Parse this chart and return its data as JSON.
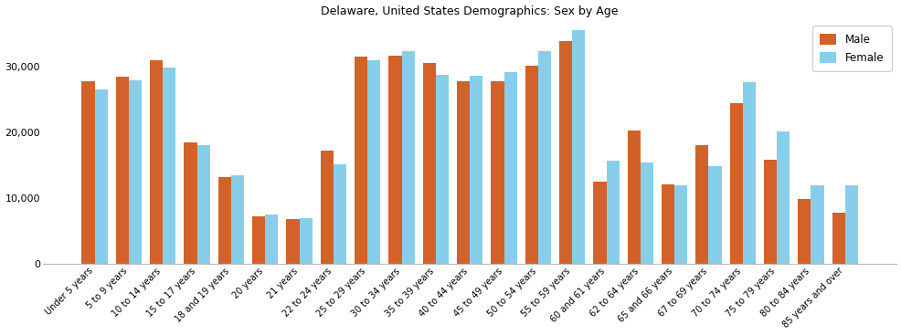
{
  "title": "Delaware, United States Demographics: Sex by Age",
  "categories": [
    "Under 5 years",
    "5 to 9 years",
    "10 to 14 years",
    "15 to 17 years",
    "18 and 19 years",
    "20 years",
    "21 years",
    "22 to 24 years",
    "25 to 29 years",
    "30 to 34 years",
    "35 to 39 years",
    "40 to 44 years",
    "45 to 49 years",
    "50 to 54 years",
    "55 to 59 years",
    "60 and 61 years",
    "62 to 64 years",
    "65 and 66 years",
    "67 to 69 years",
    "70 to 74 years",
    "75 to 79 years",
    "80 to 84 years",
    "85 years and over"
  ],
  "male": [
    27700,
    28400,
    31000,
    18500,
    13200,
    7200,
    6800,
    17200,
    31500,
    31700,
    30600,
    27800,
    27700,
    30100,
    33900,
    12500,
    20200,
    12100,
    18100,
    24400,
    15800,
    9900,
    7700
  ],
  "female": [
    26500,
    27900,
    29800,
    18100,
    13400,
    7500,
    6900,
    15100,
    31000,
    32400,
    28700,
    28600,
    29100,
    32300,
    35500,
    15700,
    15400,
    11900,
    14900,
    27600,
    20100,
    11900,
    11900
  ],
  "male_color": "#d2622a",
  "female_color": "#87ceeb",
  "bg_color": "#ffffff",
  "ylim": [
    0,
    37000
  ],
  "yticks": [
    0,
    10000,
    20000,
    30000
  ],
  "bar_width": 0.38,
  "legend_labels": [
    "Male",
    "Female"
  ],
  "title_fontsize": 9,
  "tick_fontsize": 7,
  "ytick_fontsize": 8
}
